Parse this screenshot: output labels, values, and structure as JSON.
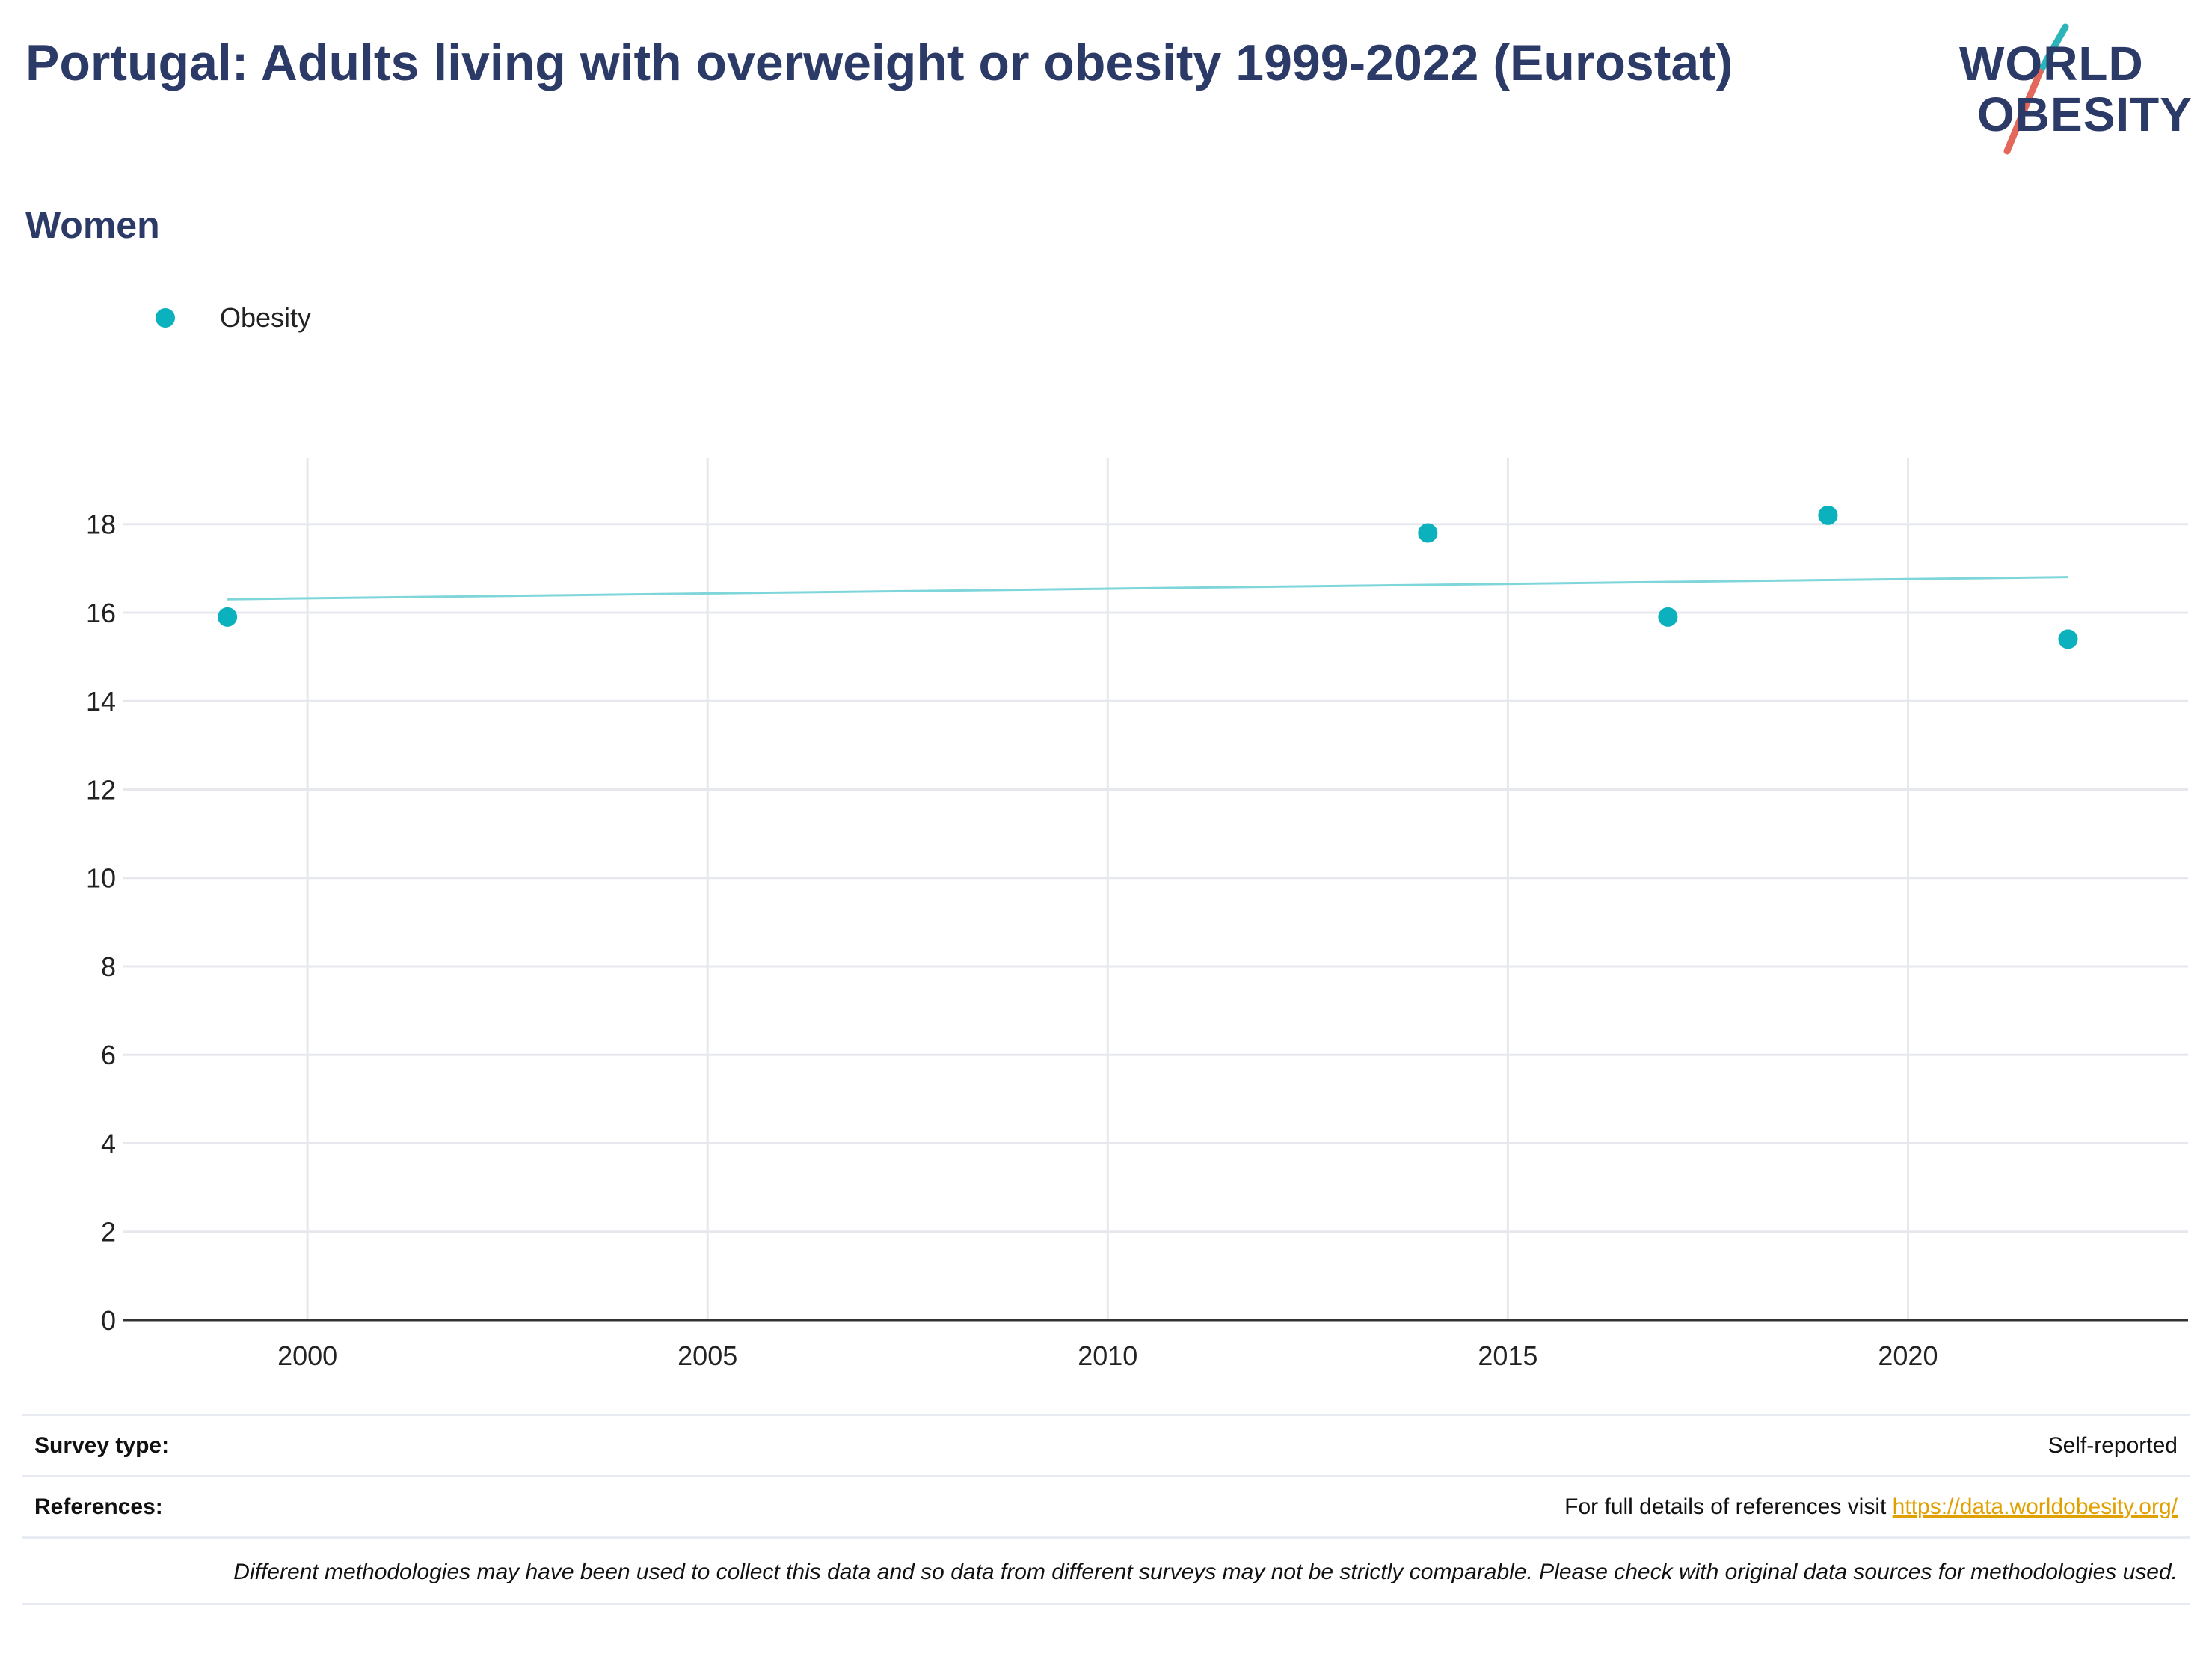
{
  "header": {
    "title": "Portugal: Adults living with overweight or obesity 1999-2022 (Eurostat)",
    "subtitle": "Women"
  },
  "logo": {
    "line1": "WORLD",
    "line2": "OBESITY",
    "accent_teal": "#2bb5b8",
    "accent_red": "#e3675a"
  },
  "legend": {
    "label": "Obesity",
    "color": "#0bb1bd"
  },
  "chart_data": {
    "type": "scatter",
    "x_ticks": [
      2000,
      2005,
      2010,
      2015,
      2020
    ],
    "y_ticks": [
      0,
      2,
      4,
      6,
      8,
      10,
      12,
      14,
      16,
      18
    ],
    "xlim": [
      1997.7,
      2023.5
    ],
    "ylim": [
      0,
      19.5
    ],
    "grid": true,
    "legend_position": "top-left",
    "series": [
      {
        "name": "Obesity",
        "color": "#0bb1bd",
        "points": [
          {
            "x": 1999,
            "y": 15.9
          },
          {
            "x": 2014,
            "y": 17.8
          },
          {
            "x": 2017,
            "y": 15.9
          },
          {
            "x": 2019,
            "y": 18.2
          },
          {
            "x": 2022,
            "y": 15.4
          }
        ]
      }
    ],
    "trendline": {
      "color": "#7fd6da",
      "start": {
        "x": 1999,
        "y": 16.3
      },
      "end": {
        "x": 2022,
        "y": 16.8
      }
    }
  },
  "info": {
    "survey_type_label": "Survey type:",
    "survey_type_value": "Self-reported",
    "references_label": "References:",
    "references_text": "For full details of references visit ",
    "references_link": "https://data.worldobesity.org/",
    "note": "Different methodologies may have been used to collect this data and so data from different surveys may not be strictly comparable. Please check with original data sources for methodologies used."
  }
}
